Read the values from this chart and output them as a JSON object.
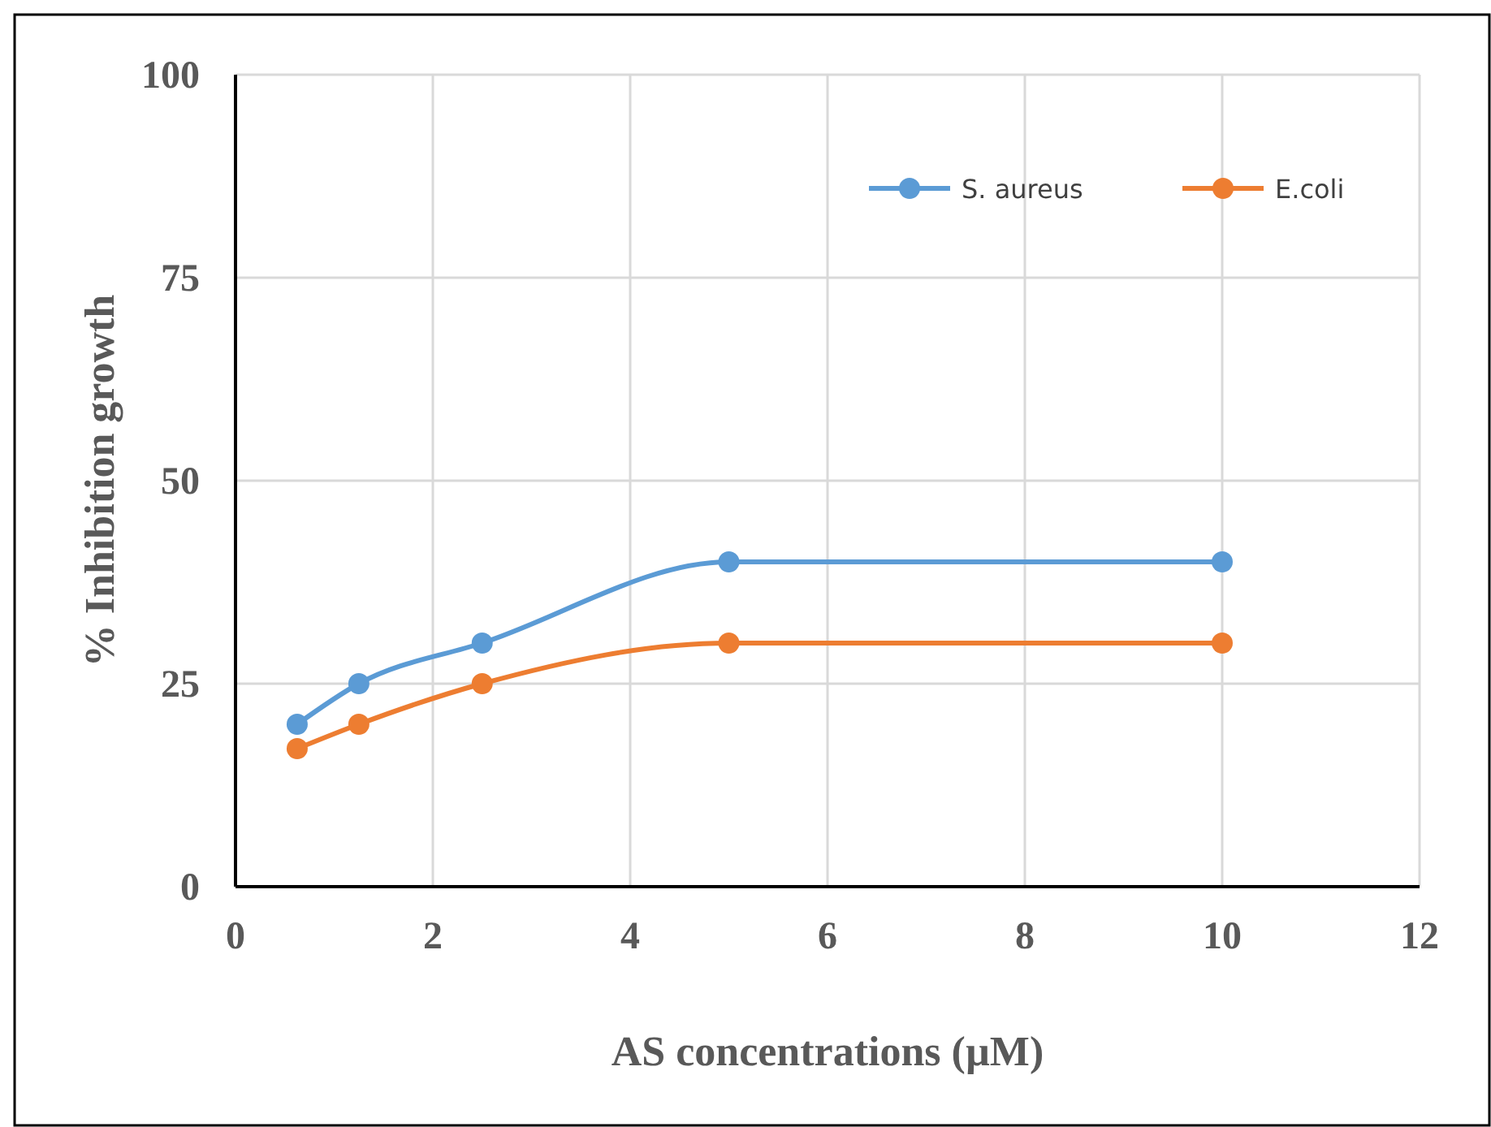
{
  "chart_data": {
    "type": "line",
    "xlabel": "AS concentrations (µM)",
    "ylabel": "% Inhibition growth",
    "x": [
      0.625,
      1.25,
      2.5,
      5,
      10
    ],
    "series": [
      {
        "name": "S. aureus",
        "color": "#5b9bd5",
        "values": [
          20,
          25,
          30,
          40,
          40
        ]
      },
      {
        "name": "E.coli",
        "color": "#ed7d31",
        "values": [
          17,
          20,
          25,
          30,
          30
        ]
      }
    ],
    "xlim": [
      0,
      12
    ],
    "xticks": [
      0,
      2,
      4,
      6,
      8,
      10,
      12
    ],
    "ylim": [
      0,
      100
    ],
    "yticks": [
      0,
      25,
      50,
      75,
      100
    ],
    "grid": true,
    "legend": "top right",
    "marker": "circle",
    "line_style": "solid"
  }
}
